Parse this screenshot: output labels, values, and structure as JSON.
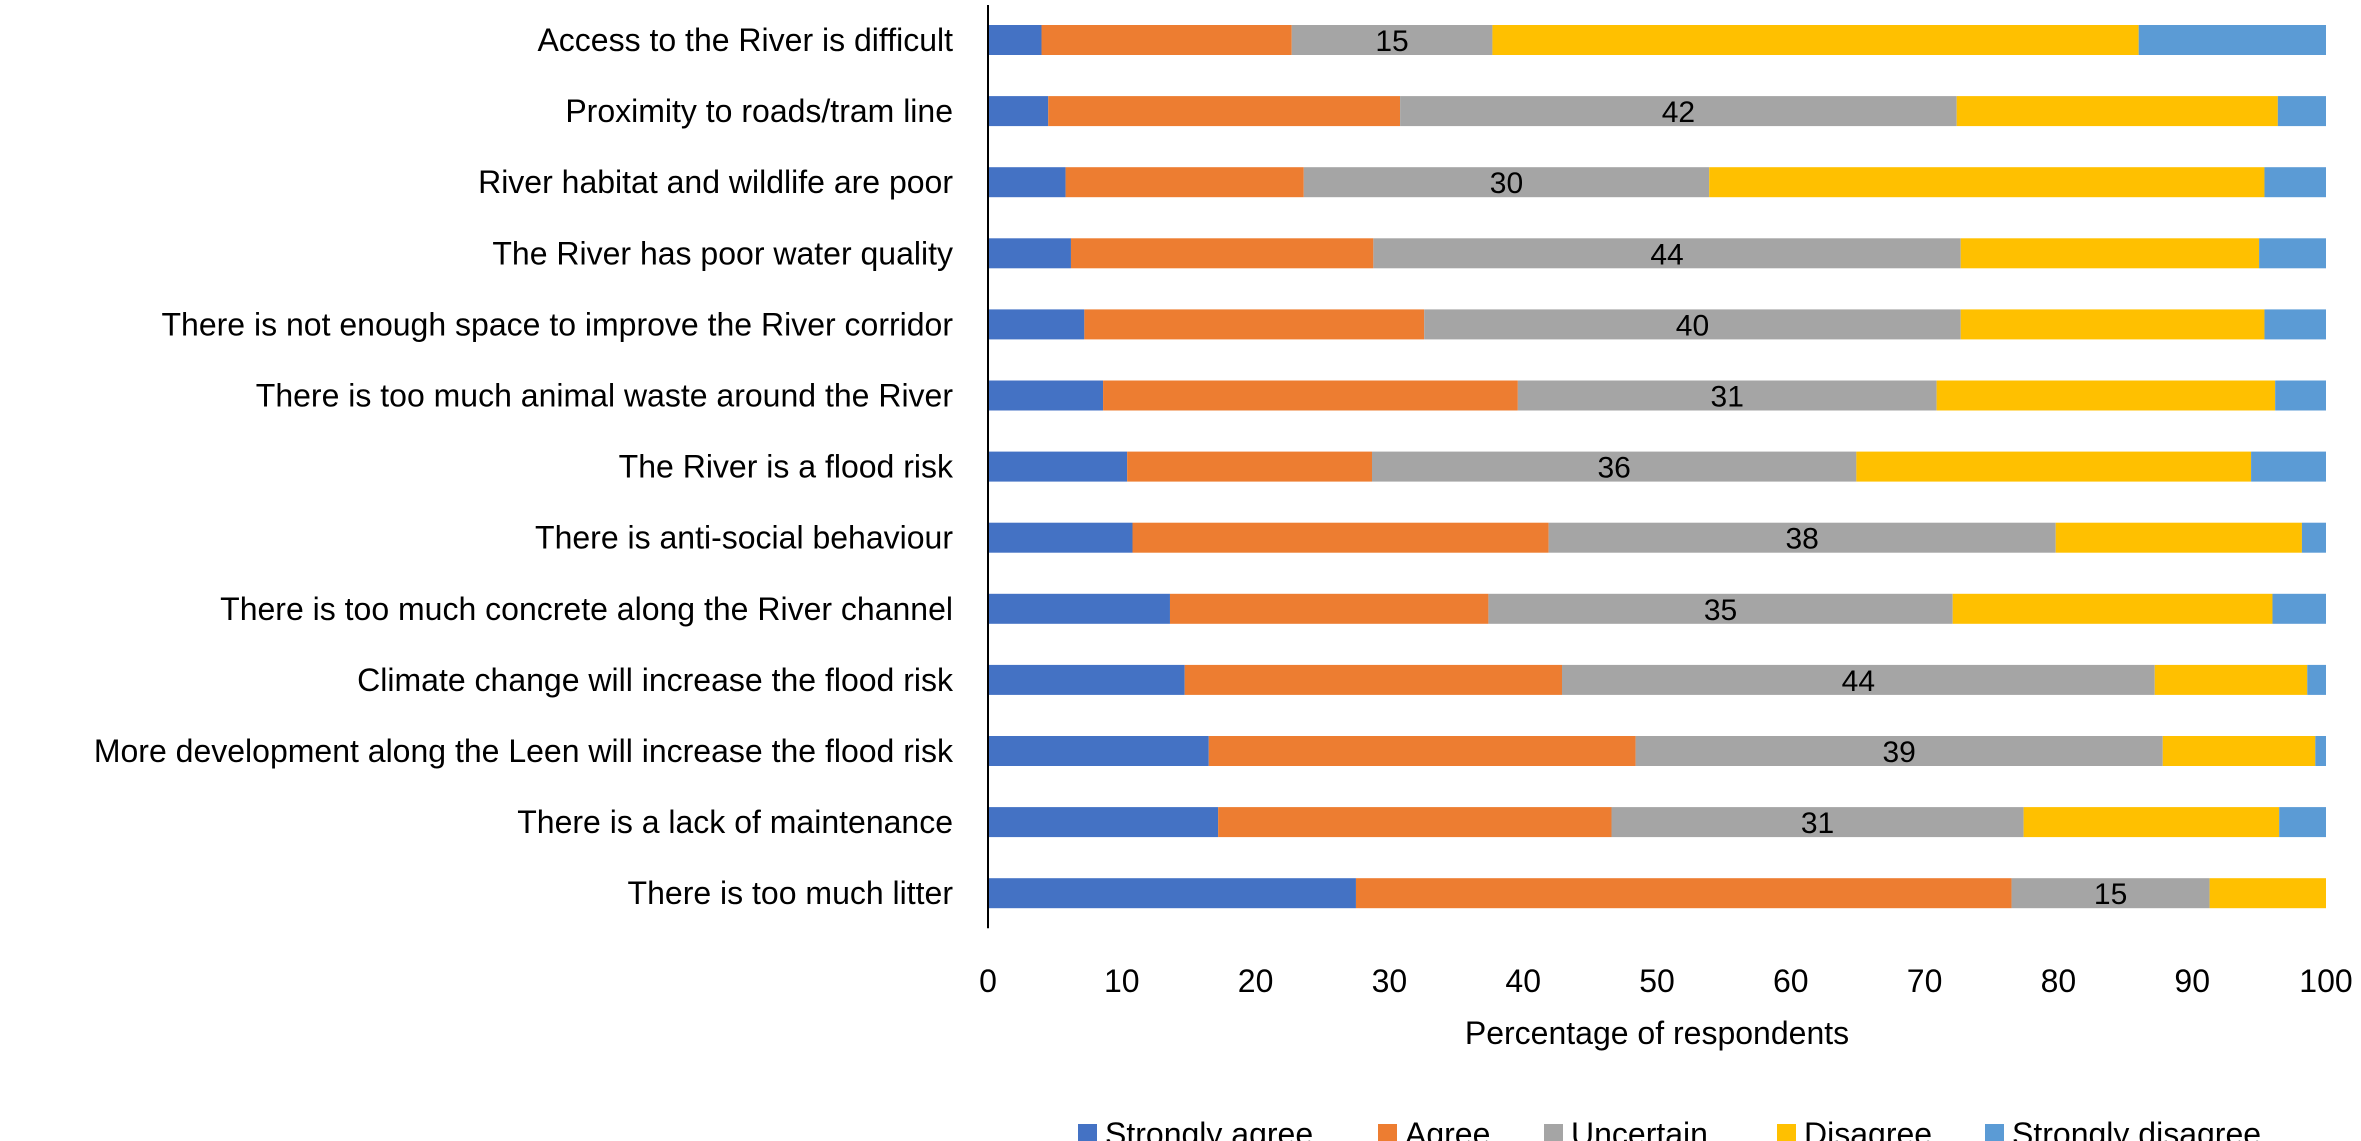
{
  "chart_data": {
    "type": "bar",
    "orientation": "horizontal",
    "stacked": true,
    "title": "",
    "xlabel": "Percentage of respondents",
    "ylabel": "",
    "xlim": [
      0,
      100
    ],
    "xticks": [
      "0",
      "10",
      "20",
      "30",
      "40",
      "50",
      "60",
      "70",
      "80",
      "90",
      "100"
    ],
    "grid": false,
    "legend_position": "bottom",
    "categories": [
      "Access to the River is difficult",
      "Proximity to roads/tram line",
      "River habitat and wildlife are poor",
      "The River has poor water quality",
      "There is not enough space to improve the River corridor",
      "There is too much animal waste around the River",
      "The River is a flood risk",
      "There is anti-social behaviour",
      "There is too much concrete along the River channel",
      "Climate change will increase the flood risk",
      "More development along the Leen will increase the flood risk",
      "There is a lack of maintenance",
      "There is too much litter"
    ],
    "series": [
      {
        "name": "Strongly agree",
        "color": "#4472C4",
        "values": [
          4,
          4.5,
          5.8,
          6.2,
          7.2,
          8.6,
          10.4,
          10.8,
          13.6,
          14.7,
          16.5,
          17.2,
          27.5
        ]
      },
      {
        "name": "Agree",
        "color": "#ED7D31",
        "values": [
          18.7,
          26.3,
          17.8,
          22.6,
          25.4,
          31,
          18.3,
          31.1,
          23.8,
          28.2,
          31.9,
          29.4,
          49
        ]
      },
      {
        "name": "Uncertain",
        "color": "#A5A5A5",
        "values": [
          15,
          41.6,
          30.3,
          43.9,
          40.1,
          31.3,
          36.2,
          37.9,
          34.7,
          44.3,
          39.4,
          30.8,
          14.8
        ]
      },
      {
        "name": "Disagree",
        "color": "#FFC000",
        "values": [
          48.3,
          24,
          41.5,
          22.3,
          22.7,
          25.3,
          29.5,
          18.4,
          23.9,
          11.4,
          11.4,
          19.1,
          8.7
        ]
      },
      {
        "name": "Strongly disagree",
        "color": "#5B9BD5",
        "values": [
          14,
          3.6,
          4.6,
          5,
          4.6,
          3.8,
          5.6,
          1.8,
          4,
          1.4,
          0.8,
          3.5,
          0
        ]
      }
    ],
    "data_labels": [
      "15",
      "42",
      "30",
      "44",
      "40",
      "31",
      "36",
      "38",
      "35",
      "44",
      "39",
      "31",
      "15"
    ]
  }
}
